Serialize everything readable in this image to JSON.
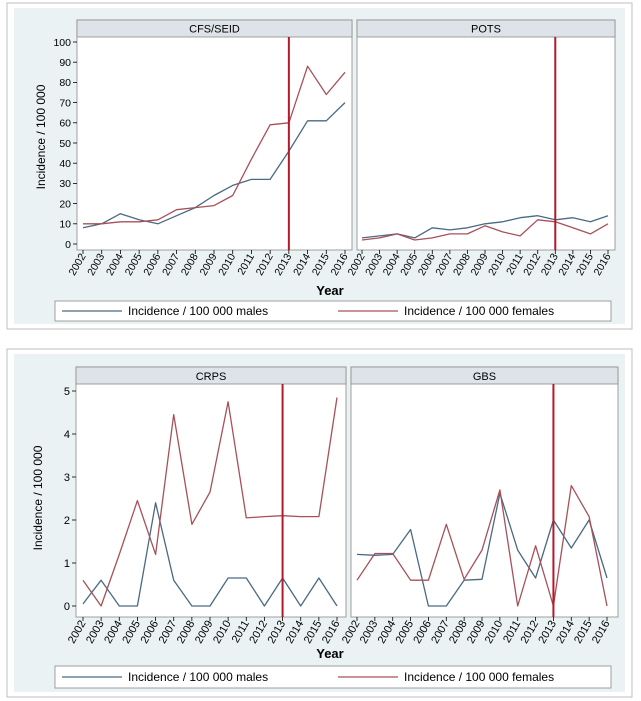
{
  "figure": {
    "background": "#ffffff",
    "outer_frame_color": "#bfbfbf",
    "panel_bg": "#ffffff",
    "strip_bg": "#dde3e8",
    "plot_region_bg": "#eaf2f3",
    "male_color": "#4a6a82",
    "female_color": "#a85058",
    "reference_line_color": "#b3192b"
  },
  "chart_data": [
    {
      "type": "line",
      "group": "top",
      "ylabel": "Incidence / 100 000",
      "xlabel": "Year",
      "ylim": [
        0,
        100
      ],
      "yticks": [
        0,
        10,
        20,
        30,
        40,
        50,
        60,
        70,
        80,
        90,
        100
      ],
      "grid": false,
      "legend": [
        "Incidence / 100 000 males",
        "Incidence / 100 000 females"
      ],
      "legend_placement": "bottom",
      "x": [
        "2002",
        "2003",
        "2004",
        "2005",
        "2006",
        "2007",
        "2008",
        "2009",
        "2010",
        "2011",
        "2012",
        "2013",
        "2014",
        "2015",
        "2016"
      ],
      "reference_line": "2013",
      "panels": [
        {
          "title": "CFS/SEID",
          "series": [
            {
              "values": [
                8,
                10,
                15,
                12,
                10,
                14,
                18,
                24,
                29,
                32,
                32,
                46,
                61,
                61,
                70
              ]
            },
            {
              "values": [
                10,
                10,
                11,
                11,
                12,
                17,
                18,
                19,
                24,
                42,
                59,
                60,
                88,
                74,
                85
              ]
            }
          ]
        },
        {
          "title": "POTS",
          "series": [
            {
              "values": [
                3,
                4,
                5,
                3,
                8,
                7,
                8,
                10,
                11,
                13,
                14,
                12,
                13,
                11,
                14
              ]
            },
            {
              "values": [
                2,
                3,
                5,
                2,
                3,
                5,
                5,
                9,
                6,
                4,
                12,
                11,
                8,
                5,
                10
              ]
            }
          ]
        }
      ]
    },
    {
      "type": "line",
      "group": "bottom",
      "ylabel": "Incidence / 100 000",
      "xlabel": "Year",
      "ylim": [
        0,
        5
      ],
      "yticks": [
        0,
        1,
        2,
        3,
        4,
        5
      ],
      "grid": false,
      "legend": [
        "Incidence / 100 000 males",
        "Incidence / 100 000 females"
      ],
      "legend_placement": "bottom",
      "x": [
        "2002",
        "2003",
        "2004",
        "2005",
        "2006",
        "2007",
        "2008",
        "2009",
        "2010",
        "2011",
        "2012",
        "2013",
        "2014",
        "2015",
        "2016"
      ],
      "reference_line": "2013",
      "panels": [
        {
          "title": "CRPS",
          "series": [
            {
              "values": [
                0.05,
                0.6,
                0,
                0,
                2.4,
                0.6,
                0,
                0,
                0.65,
                0.65,
                0,
                0.65,
                0,
                0.65,
                0
              ]
            },
            {
              "values": [
                0.6,
                0,
                1.2,
                2.45,
                1.2,
                4.45,
                1.9,
                2.65,
                4.75,
                2.05,
                2.08,
                2.1,
                2.08,
                2.08,
                4.85
              ]
            }
          ]
        },
        {
          "title": "GBS",
          "series": [
            {
              "values": [
                1.2,
                1.18,
                1.2,
                1.78,
                0,
                0,
                0.6,
                0.62,
                2.62,
                1.3,
                0.65,
                2.0,
                1.35,
                2.0,
                0.65
              ]
            },
            {
              "values": [
                0.6,
                1.22,
                1.22,
                0.6,
                0.6,
                1.9,
                0.62,
                1.3,
                2.7,
                0,
                1.4,
                0,
                2.8,
                2.08,
                0
              ]
            }
          ]
        }
      ]
    }
  ]
}
